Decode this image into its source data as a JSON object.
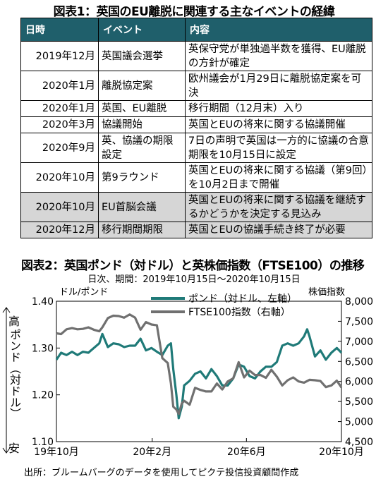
{
  "table_title": "図表1：英国のEU離脱に関連する主なイベントの経緯",
  "table": {
    "headers": [
      "日時",
      "イベント",
      "内容"
    ],
    "rows": [
      {
        "date": "2019年12月",
        "event": "英国議会選挙",
        "content": "英保守党が単独過半数を獲得、EU離脱の方針が確定",
        "highlight": false
      },
      {
        "date": "2020年1月",
        "event": "離脱協定案",
        "content": "欧州議会が1月29日に離脱協定案を可決",
        "highlight": false
      },
      {
        "date": "2020年1月",
        "event": "英国、EU離脱",
        "content": "移行期間（12月末）入り",
        "highlight": false
      },
      {
        "date": "2020年3月",
        "event": "協議開始",
        "content": "英国とEUの将来に関する協議開催",
        "highlight": false
      },
      {
        "date": "2020年9月",
        "event": "英、協議の期限設定",
        "content": "7日の声明で英国は一方的に協議の合意期限を10月15日に設定",
        "highlight": false
      },
      {
        "date": "2020年10月",
        "event": "第9ラウンド",
        "content": "英国とEUの将来に関する協議（第9回）を10月2日まで開催",
        "highlight": false
      },
      {
        "date": "2020年10月",
        "event": "EU首脳会議",
        "content": "英国とEUの将来に関する協議を継続するかどうかを決定する見込み",
        "highlight": true
      },
      {
        "date": "2020年12月",
        "event": "移行期間期限",
        "content": "英国とEUの協議手続き終了が必要",
        "highlight": true
      }
    ]
  },
  "chart_title": "図表2：英国ポンド（対ドル）と英株価指数（FTSE100）の推移",
  "chart_subtitle": "日次、期間：2019年10月15日～2020年10月15日",
  "left_unit": "ドル/ポンド",
  "right_unit": "株価指数",
  "high_label": "高",
  "low_label": "安",
  "vertical_label": "ポンド（対ドル）",
  "source": "出所：ブルームバーグのデータを使用してピクテ投信投資顧問作成",
  "chart_data": {
    "type": "line",
    "x_ticks": [
      "19年10月",
      "20年2月",
      "20年6月",
      "20年10月"
    ],
    "y_left": {
      "ticks": [
        "1.40",
        "1.30",
        "1.20",
        "1.10"
      ],
      "range": [
        1.1,
        1.4
      ]
    },
    "y_right": {
      "ticks": [
        "8,000",
        "7,500",
        "7,000",
        "6,500",
        "6,000",
        "5,500",
        "5,000",
        "4,500"
      ],
      "range": [
        4500,
        8000
      ]
    },
    "legend_position": "top-center",
    "series": [
      {
        "name": "ポンド（対ドル、左軸）",
        "axis": "left",
        "color": "#1f7a78",
        "dates": [
          "2019-10-15",
          "2019-10-21",
          "2019-10-28",
          "2019-11-04",
          "2019-11-11",
          "2019-11-18",
          "2019-11-25",
          "2019-12-02",
          "2019-12-09",
          "2019-12-13",
          "2019-12-20",
          "2019-12-27",
          "2020-01-03",
          "2020-01-10",
          "2020-01-17",
          "2020-01-24",
          "2020-01-31",
          "2020-02-07",
          "2020-02-14",
          "2020-02-21",
          "2020-02-28",
          "2020-03-06",
          "2020-03-10",
          "2020-03-13",
          "2020-03-17",
          "2020-03-20",
          "2020-03-24",
          "2020-03-27",
          "2020-04-03",
          "2020-04-10",
          "2020-04-17",
          "2020-04-24",
          "2020-05-01",
          "2020-05-08",
          "2020-05-15",
          "2020-05-22",
          "2020-05-29",
          "2020-06-05",
          "2020-06-12",
          "2020-06-19",
          "2020-06-26",
          "2020-07-03",
          "2020-07-10",
          "2020-07-17",
          "2020-07-24",
          "2020-07-31",
          "2020-08-07",
          "2020-08-14",
          "2020-08-21",
          "2020-08-28",
          "2020-09-01",
          "2020-09-04",
          "2020-09-11",
          "2020-09-18",
          "2020-09-25",
          "2020-10-02",
          "2020-10-09",
          "2020-10-15"
        ],
        "values": [
          1.275,
          1.29,
          1.285,
          1.292,
          1.285,
          1.292,
          1.29,
          1.3,
          1.31,
          1.33,
          1.302,
          1.31,
          1.308,
          1.302,
          1.305,
          1.305,
          1.32,
          1.295,
          1.3,
          1.292,
          1.285,
          1.305,
          1.31,
          1.255,
          1.2,
          1.15,
          1.175,
          1.22,
          1.23,
          1.245,
          1.25,
          1.235,
          1.255,
          1.24,
          1.22,
          1.22,
          1.235,
          1.265,
          1.26,
          1.24,
          1.235,
          1.25,
          1.26,
          1.26,
          1.27,
          1.305,
          1.31,
          1.305,
          1.31,
          1.325,
          1.34,
          1.325,
          1.282,
          1.295,
          1.275,
          1.29,
          1.3,
          1.29
        ]
      },
      {
        "name": "FTSE100指数（右軸）",
        "axis": "right",
        "color": "#707070",
        "dates": [
          "2019-10-15",
          "2019-10-21",
          "2019-10-28",
          "2019-11-04",
          "2019-11-11",
          "2019-11-18",
          "2019-11-25",
          "2019-12-02",
          "2019-12-09",
          "2019-12-13",
          "2019-12-20",
          "2019-12-27",
          "2020-01-03",
          "2020-01-10",
          "2020-01-17",
          "2020-01-24",
          "2020-01-31",
          "2020-02-07",
          "2020-02-14",
          "2020-02-21",
          "2020-02-28",
          "2020-03-06",
          "2020-03-10",
          "2020-03-13",
          "2020-03-17",
          "2020-03-20",
          "2020-03-24",
          "2020-03-27",
          "2020-04-03",
          "2020-04-10",
          "2020-04-17",
          "2020-04-24",
          "2020-05-01",
          "2020-05-08",
          "2020-05-15",
          "2020-05-22",
          "2020-05-29",
          "2020-06-05",
          "2020-06-12",
          "2020-06-19",
          "2020-06-26",
          "2020-07-03",
          "2020-07-10",
          "2020-07-17",
          "2020-07-24",
          "2020-07-31",
          "2020-08-07",
          "2020-08-14",
          "2020-08-21",
          "2020-08-28",
          "2020-09-04",
          "2020-09-11",
          "2020-09-18",
          "2020-09-25",
          "2020-10-02",
          "2020-10-09",
          "2020-10-15"
        ],
        "values": [
          7200,
          7180,
          7300,
          7330,
          7300,
          7310,
          7350,
          7290,
          7250,
          7350,
          7580,
          7640,
          7630,
          7590,
          7670,
          7590,
          7290,
          7480,
          7420,
          7400,
          6580,
          6460,
          5950,
          5370,
          5300,
          5190,
          5450,
          5520,
          5420,
          5840,
          5790,
          5750,
          5750,
          5950,
          5800,
          6000,
          6080,
          6480,
          6100,
          6270,
          6160,
          6160,
          6090,
          6290,
          6120,
          5900,
          6030,
          6100,
          6000,
          5970,
          6040,
          6030,
          6010,
          5860,
          5900,
          6020,
          5850
        ]
      }
    ]
  }
}
